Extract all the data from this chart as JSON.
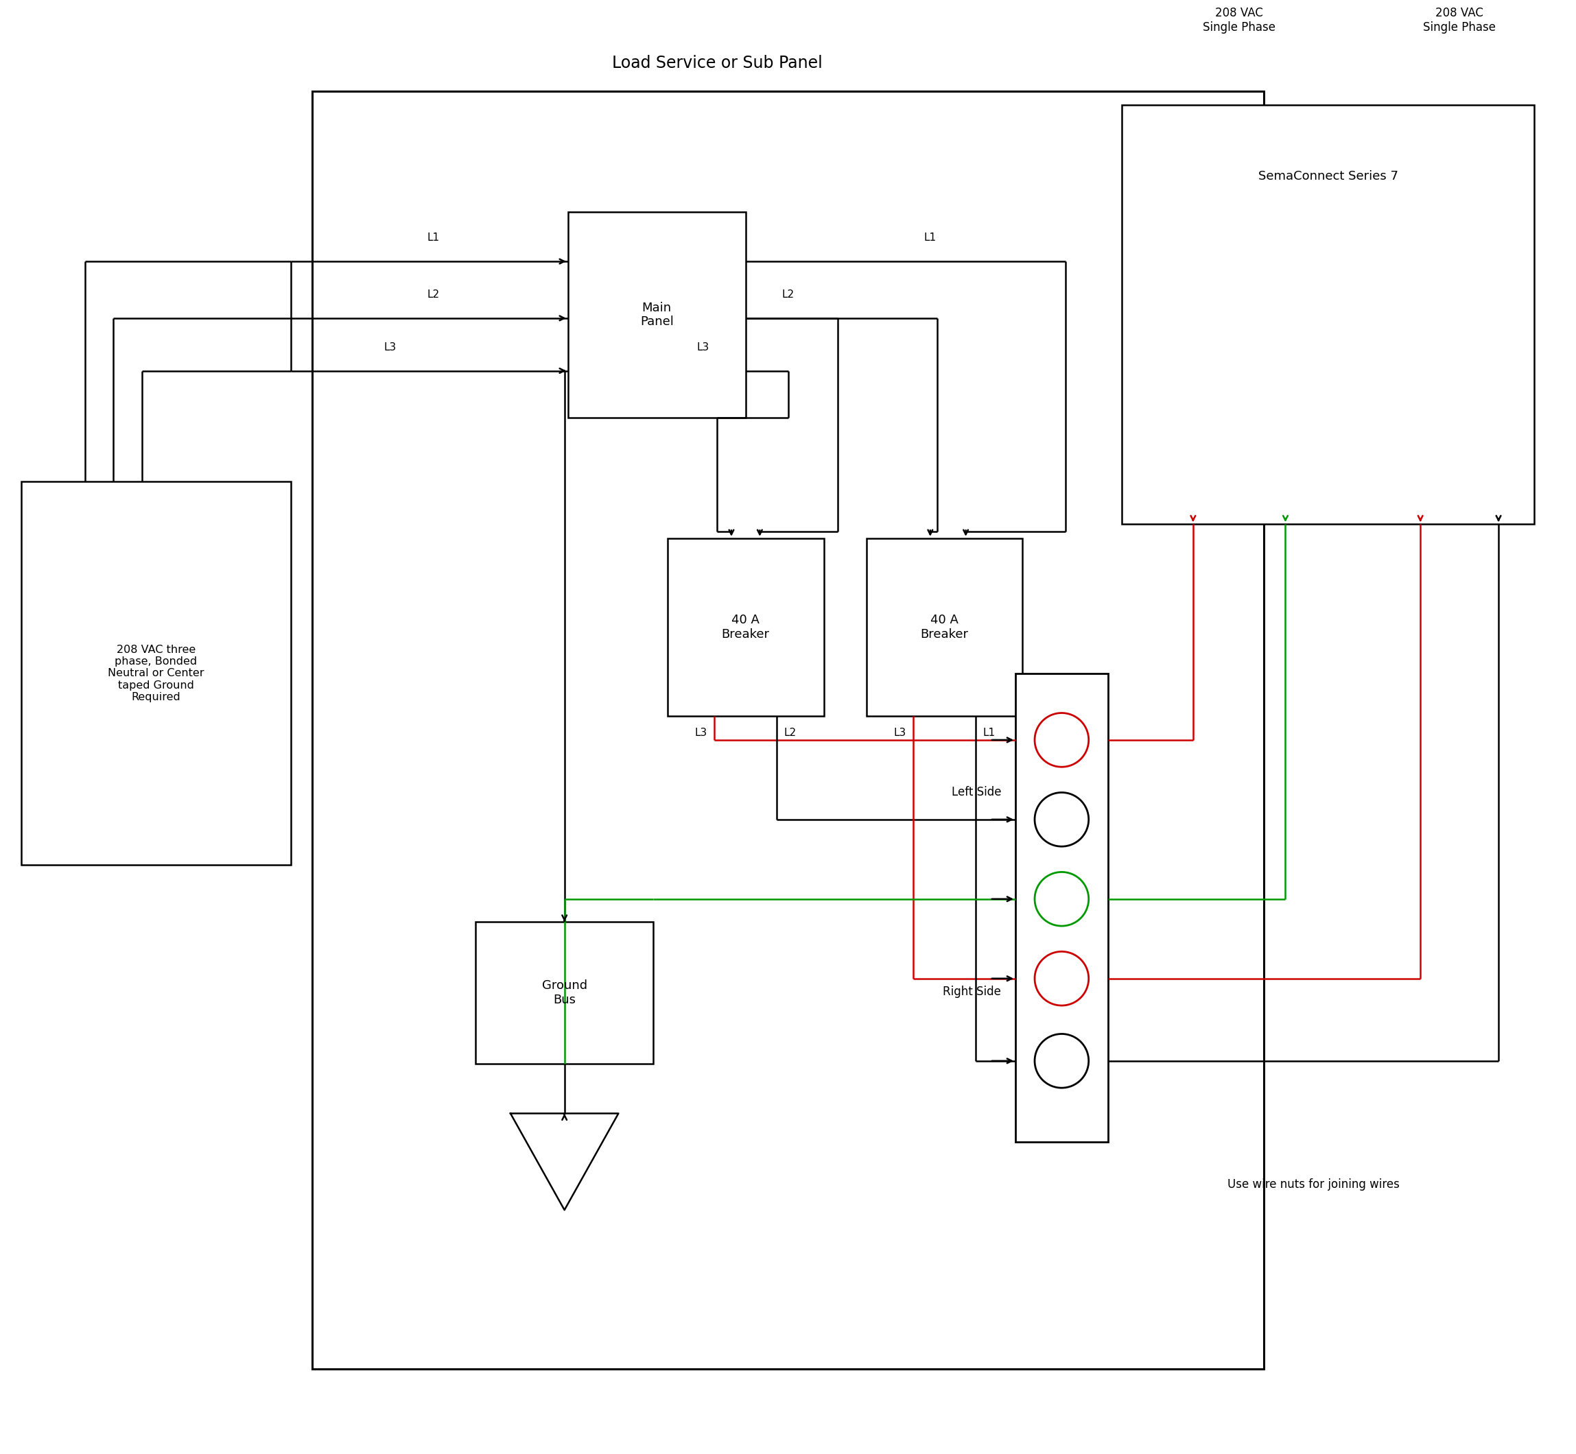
{
  "bg_color": "#ffffff",
  "line_color": "#000000",
  "red_color": "#cc0000",
  "green_color": "#009900",
  "panel_title": "Load Service or Sub Panel",
  "sema_title": "SemaConnect Series 7",
  "source_label": "208 VAC three\nphase, Bonded\nNeutral or Center\ntaped Ground\nRequired",
  "ground_label": "Ground\nBus",
  "breaker1_label": "40 A\nBreaker",
  "breaker2_label": "40 A\nBreaker",
  "main_panel_label": "Main\nPanel",
  "left_side_label": "Left Side",
  "right_side_label": "Right Side",
  "wire_note": "Use wire nuts for joining wires",
  "vac_left_label": "208 VAC\nSingle Phase",
  "vac_right_label": "208 VAC\nSingle Phase",
  "font_size": 13,
  "title_font_size": 17
}
